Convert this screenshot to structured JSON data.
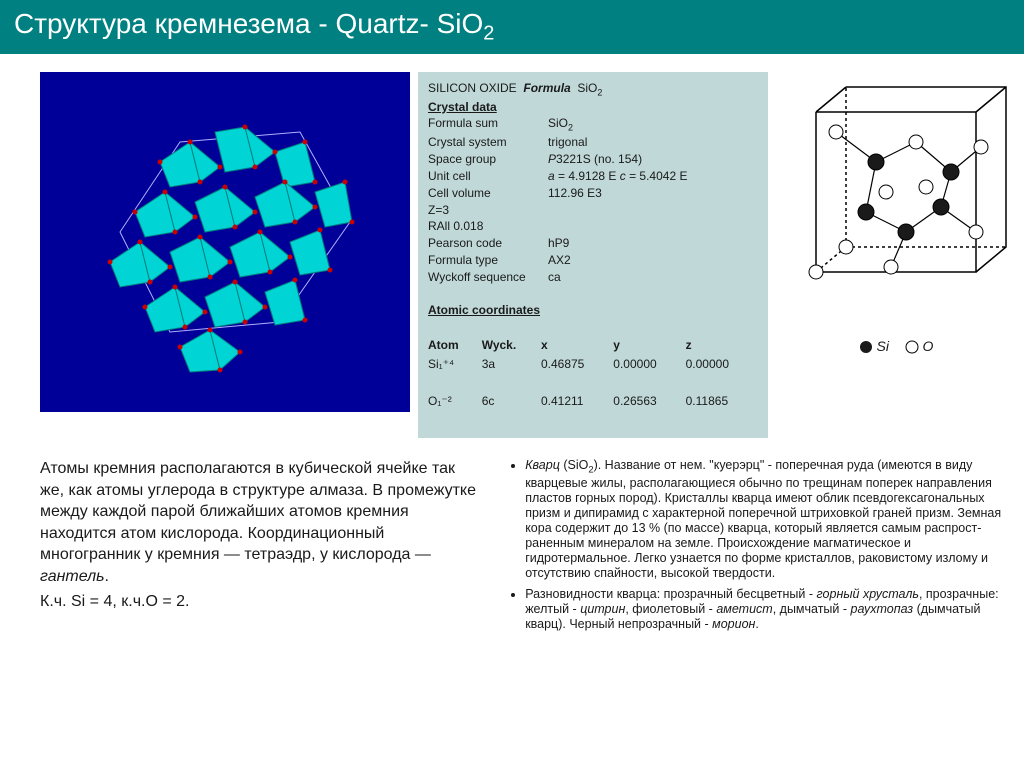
{
  "title_prefix": "Структура кремнезема - Quartz- SiO",
  "title_sub": "2",
  "crystal_panel": {
    "bg": "#000099",
    "tet_fill": "#00d0d0",
    "tet_stroke": "#00a0a0",
    "vertex": "#c00000",
    "outline": "#a0a0ff"
  },
  "data": {
    "head1": "SILICON OXIDE",
    "head2": "Formula",
    "head3": "SiO",
    "head3_sub": "2",
    "crystal_hdr": "Crystal data",
    "rows": [
      {
        "l": "Formula sum",
        "v": "SiO",
        "sub": "2"
      },
      {
        "l": "Crystal system",
        "v": "trigonal"
      },
      {
        "l": "Space group",
        "v_i": "P",
        "v2": "3221S (no. 154)"
      },
      {
        "l": "Unit cell",
        "full": "a = 4.9128 E c = 5.4042 E",
        "ital_a": true
      },
      {
        "l": "Cell volume",
        "v": "112.96 E3"
      },
      {
        "l": "Z=3",
        "v": ""
      },
      {
        "l": "RAll 0.018",
        "v": ""
      },
      {
        "l": "Pearson code",
        "v": "hP9"
      },
      {
        "l": "Formula type",
        "v": "AX2"
      },
      {
        "l": "Wyckoff sequence",
        "v": "ca"
      }
    ],
    "atomic_hdr": "Atomic coordinates",
    "cols": [
      "Atom",
      "Wyck.",
      "x",
      "y",
      "z"
    ],
    "atoms": [
      {
        "a": "Si₁⁺⁴",
        "w": "3a",
        "x": "0.46875",
        "y": "0.00000",
        "z": "0.00000"
      },
      {
        "a": "O₁⁻²",
        "w": "6c",
        "x": "0.41211",
        "y": "0.26563",
        "z": "0.11865"
      }
    ]
  },
  "legend": {
    "si": "Si",
    "o": "O"
  },
  "left_para": {
    "p1a": "Атомы кремния располагаются в кубической ячейке так же, как атомы углерода в структуре алмаза. В промежутке между каждой парой ближайших атомов кремния находится атом кислорода. Координационный многогранник у кремния — тетраэдр, у кислорода — ",
    "p1b": "гантель",
    "p1c": ".",
    "p2": "К.ч. Si = 4, к.ч.O = 2."
  },
  "right": {
    "li1a": "Кварц",
    "li1b": " (SiO",
    "li1c": "). Название от нем. \"куерэрц\" - поперечная руда (имеются в виду кварцевые жилы, располагающиеся обычно по трещинам поперек направления пластов горных пород). Кристаллы кварца имеют облик псевдогексагональных призм и дипирамид с характерной поперечной штриховкой граней призм. Земная кора содержит до 13 % (по массе) кварца, который является самым распрост-раненным минералом на земле. Происхождение магматическое и гидротермальное. Легко узнается по форме кристаллов, раковистому излому и отсутствию спайности, высокой твердости.",
    "li2a": "Разновидности кварца: прозрачный бесцветный - ",
    "li2b": "горный хрусталь",
    "li2c": ", прозрачные: желтый - ",
    "li2d": "цитрин",
    "li2e": ", фиолетовый - ",
    "li2f": "аметист",
    "li2g": ", дымчатый - ",
    "li2h": "раухтопаз",
    "li2i": " (дымчатый кварц). Черный непрозрачный - ",
    "li2j": "морион",
    "li2k": "."
  }
}
